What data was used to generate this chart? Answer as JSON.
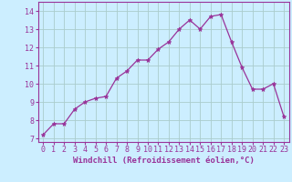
{
  "x": [
    0,
    1,
    2,
    3,
    4,
    5,
    6,
    7,
    8,
    9,
    10,
    11,
    12,
    13,
    14,
    15,
    16,
    17,
    18,
    19,
    20,
    21,
    22,
    23
  ],
  "y": [
    7.2,
    7.8,
    7.8,
    8.6,
    9.0,
    9.2,
    9.3,
    10.3,
    10.7,
    11.3,
    11.3,
    11.9,
    12.3,
    13.0,
    13.5,
    13.0,
    13.7,
    13.8,
    12.3,
    10.9,
    9.7,
    9.7,
    10.0,
    8.2
  ],
  "line_color": "#993399",
  "marker": "*",
  "marker_size": 3.5,
  "bg_color": "#cceeff",
  "grid_color": "#aacccc",
  "xlabel": "Windchill (Refroidissement éolien,°C)",
  "xlabel_color": "#993399",
  "xlabel_fontsize": 6.5,
  "ylabel_ticks": [
    7,
    8,
    9,
    10,
    11,
    12,
    13,
    14
  ],
  "ylim": [
    6.8,
    14.5
  ],
  "xlim": [
    -0.5,
    23.5
  ],
  "tick_fontsize": 6,
  "tick_color": "#993399",
  "spine_color": "#993399"
}
